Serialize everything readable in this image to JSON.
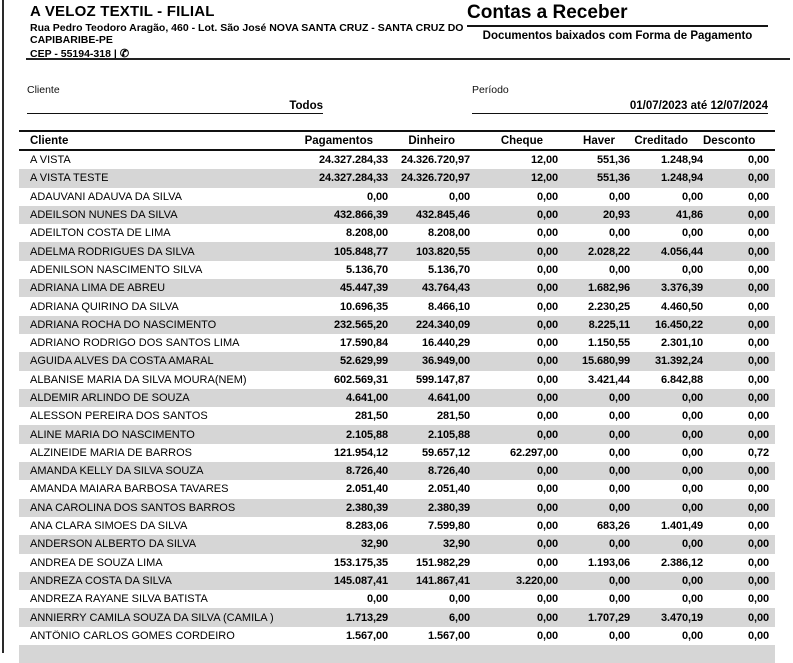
{
  "letterhead": {
    "company": "A VELOZ TEXTIL - FILIAL",
    "address": "Rua Pedro Teodoro Aragão, 460 - Lot. São José NOVA SANTA CRUZ - SANTA CRUZ DO CAPIBARIBE-PE",
    "cep": "CEP - 55194-318 |",
    "phone_icon_glyph": "✆"
  },
  "report": {
    "title": "Contas a Receber",
    "subtitle": "Documentos baixados com Forma de Pagamento"
  },
  "filters": {
    "cliente": {
      "label": "Cliente",
      "value": "Todos"
    },
    "periodo": {
      "label": "Período",
      "value": "01/07/2023 até 12/07/2024"
    }
  },
  "table": {
    "columns": [
      "Cliente",
      "Pagamentos",
      "Dinheiro",
      "Cheque",
      "Haver",
      "Creditado",
      "Desconto"
    ],
    "rows": [
      [
        "A VISTA",
        "24.327.284,33",
        "24.326.720,97",
        "12,00",
        "551,36",
        "1.248,94",
        "0,00"
      ],
      [
        "A VISTA TESTE",
        "24.327.284,33",
        "24.326.720,97",
        "12,00",
        "551,36",
        "1.248,94",
        "0,00"
      ],
      [
        "ADAUVANI ADAUVA DA SILVA",
        "0,00",
        "0,00",
        "0,00",
        "0,00",
        "0,00",
        "0,00"
      ],
      [
        "ADEILSON NUNES DA SILVA",
        "432.866,39",
        "432.845,46",
        "0,00",
        "20,93",
        "41,86",
        "0,00"
      ],
      [
        "ADEILTON COSTA DE LIMA",
        "8.208,00",
        "8.208,00",
        "0,00",
        "0,00",
        "0,00",
        "0,00"
      ],
      [
        "ADELMA RODRIGUES DA SILVA",
        "105.848,77",
        "103.820,55",
        "0,00",
        "2.028,22",
        "4.056,44",
        "0,00"
      ],
      [
        "ADENILSON NASCIMENTO SILVA",
        "5.136,70",
        "5.136,70",
        "0,00",
        "0,00",
        "0,00",
        "0,00"
      ],
      [
        "ADRIANA LIMA DE ABREU",
        "45.447,39",
        "43.764,43",
        "0,00",
        "1.682,96",
        "3.376,39",
        "0,00"
      ],
      [
        "ADRIANA QUIRINO DA SILVA",
        "10.696,35",
        "8.466,10",
        "0,00",
        "2.230,25",
        "4.460,50",
        "0,00"
      ],
      [
        "ADRIANA ROCHA DO NASCIMENTO",
        "232.565,20",
        "224.340,09",
        "0,00",
        "8.225,11",
        "16.450,22",
        "0,00"
      ],
      [
        "ADRIANO RODRIGO DOS SANTOS LIMA",
        "17.590,84",
        "16.440,29",
        "0,00",
        "1.150,55",
        "2.301,10",
        "0,00"
      ],
      [
        "AGUIDA ALVES DA COSTA AMARAL",
        "52.629,99",
        "36.949,00",
        "0,00",
        "15.680,99",
        "31.392,24",
        "0,00"
      ],
      [
        "ALBANISE MARIA DA SILVA MOURA(NEM)",
        "602.569,31",
        "599.147,87",
        "0,00",
        "3.421,44",
        "6.842,88",
        "0,00"
      ],
      [
        "ALDEMIR ARLINDO DE SOUZA",
        "4.641,00",
        "4.641,00",
        "0,00",
        "0,00",
        "0,00",
        "0,00"
      ],
      [
        "ALESSON PEREIRA DOS SANTOS",
        "281,50",
        "281,50",
        "0,00",
        "0,00",
        "0,00",
        "0,00"
      ],
      [
        "ALINE MARIA DO NASCIMENTO",
        "2.105,88",
        "2.105,88",
        "0,00",
        "0,00",
        "0,00",
        "0,00"
      ],
      [
        "ALZINEIDE MARIA DE BARROS",
        "121.954,12",
        "59.657,12",
        "62.297,00",
        "0,00",
        "0,00",
        "0,72"
      ],
      [
        "AMANDA KELLY DA SILVA SOUZA",
        "8.726,40",
        "8.726,40",
        "0,00",
        "0,00",
        "0,00",
        "0,00"
      ],
      [
        "AMANDA MAIARA BARBOSA TAVARES",
        "2.051,40",
        "2.051,40",
        "0,00",
        "0,00",
        "0,00",
        "0,00"
      ],
      [
        "ANA CAROLINA DOS SANTOS BARROS",
        "2.380,39",
        "2.380,39",
        "0,00",
        "0,00",
        "0,00",
        "0,00"
      ],
      [
        "ANA CLARA SIMOES DA SILVA",
        "8.283,06",
        "7.599,80",
        "0,00",
        "683,26",
        "1.401,49",
        "0,00"
      ],
      [
        "ANDERSON ALBERTO DA SILVA",
        "32,90",
        "32,90",
        "0,00",
        "0,00",
        "0,00",
        "0,00"
      ],
      [
        "ANDREA DE SOUZA LIMA",
        "153.175,35",
        "151.982,29",
        "0,00",
        "1.193,06",
        "2.386,12",
        "0,00"
      ],
      [
        "ANDREZA COSTA DA SILVA",
        "145.087,41",
        "141.867,41",
        "3.220,00",
        "0,00",
        "0,00",
        "0,00"
      ],
      [
        "ANDREZA RAYANE SILVA BATISTA",
        "0,00",
        "0,00",
        "0,00",
        "0,00",
        "0,00",
        "0,00"
      ],
      [
        "ANNIERRY CAMILA SOUZA DA SILVA (CAMILA )",
        "1.713,29",
        "6,00",
        "0,00",
        "1.707,29",
        "3.470,19",
        "0,00"
      ],
      [
        "ANTÔNIO CARLOS GOMES CORDEIRO",
        "1.567,00",
        "1.567,00",
        "0,00",
        "0,00",
        "0,00",
        "0,00"
      ]
    ]
  },
  "colors": {
    "row_alt_bg": "#d6d6d6",
    "rule": "#111111",
    "text": "#000000"
  }
}
